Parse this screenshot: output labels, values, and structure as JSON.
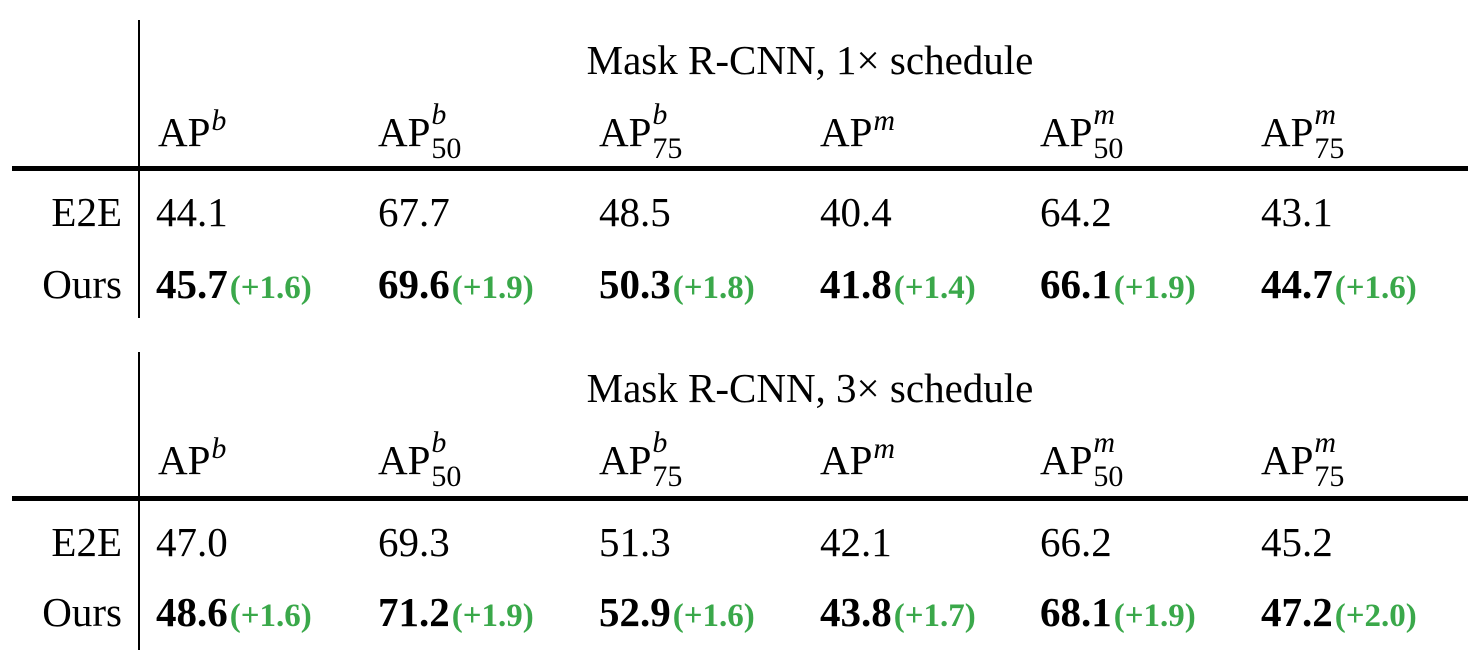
{
  "tables": [
    {
      "title": "Mask R-CNN, 1× schedule",
      "columns": [
        {
          "base": "AP",
          "sup": "b",
          "sub": ""
        },
        {
          "base": "AP",
          "sup": "b",
          "sub": "50"
        },
        {
          "base": "AP",
          "sup": "b",
          "sub": "75"
        },
        {
          "base": "AP",
          "sup": "m",
          "sub": ""
        },
        {
          "base": "AP",
          "sup": "m",
          "sub": "50"
        },
        {
          "base": "AP",
          "sup": "m",
          "sub": "75"
        }
      ],
      "rows": [
        {
          "label": "E2E",
          "cells": [
            {
              "value": "44.1",
              "gain": ""
            },
            {
              "value": "67.7",
              "gain": ""
            },
            {
              "value": "48.5",
              "gain": ""
            },
            {
              "value": "40.4",
              "gain": ""
            },
            {
              "value": "64.2",
              "gain": ""
            },
            {
              "value": "43.1",
              "gain": ""
            }
          ]
        },
        {
          "label": "Ours",
          "cells": [
            {
              "value": "45.7",
              "gain": "(+1.6)"
            },
            {
              "value": "69.6",
              "gain": "(+1.9)"
            },
            {
              "value": "50.3",
              "gain": "(+1.8)"
            },
            {
              "value": "41.8",
              "gain": "(+1.4)"
            },
            {
              "value": "66.1",
              "gain": "(+1.9)"
            },
            {
              "value": "44.7",
              "gain": "(+1.6)"
            }
          ]
        }
      ]
    },
    {
      "title": "Mask R-CNN, 3× schedule",
      "columns": [
        {
          "base": "AP",
          "sup": "b",
          "sub": ""
        },
        {
          "base": "AP",
          "sup": "b",
          "sub": "50"
        },
        {
          "base": "AP",
          "sup": "b",
          "sub": "75"
        },
        {
          "base": "AP",
          "sup": "m",
          "sub": ""
        },
        {
          "base": "AP",
          "sup": "m",
          "sub": "50"
        },
        {
          "base": "AP",
          "sup": "m",
          "sub": "75"
        }
      ],
      "rows": [
        {
          "label": "E2E",
          "cells": [
            {
              "value": "47.0",
              "gain": ""
            },
            {
              "value": "69.3",
              "gain": ""
            },
            {
              "value": "51.3",
              "gain": ""
            },
            {
              "value": "42.1",
              "gain": ""
            },
            {
              "value": "66.2",
              "gain": ""
            },
            {
              "value": "45.2",
              "gain": ""
            }
          ]
        },
        {
          "label": "Ours",
          "cells": [
            {
              "value": "48.6",
              "gain": "(+1.6)"
            },
            {
              "value": "71.2",
              "gain": "(+1.9)"
            },
            {
              "value": "52.9",
              "gain": "(+1.6)"
            },
            {
              "value": "43.8",
              "gain": "(+1.7)"
            },
            {
              "value": "68.1",
              "gain": "(+1.9)"
            },
            {
              "value": "47.2",
              "gain": "(+2.0)"
            }
          ]
        }
      ]
    }
  ],
  "colors": {
    "text": "#000000",
    "gain": "#3aa84a",
    "rule": "#000000"
  }
}
